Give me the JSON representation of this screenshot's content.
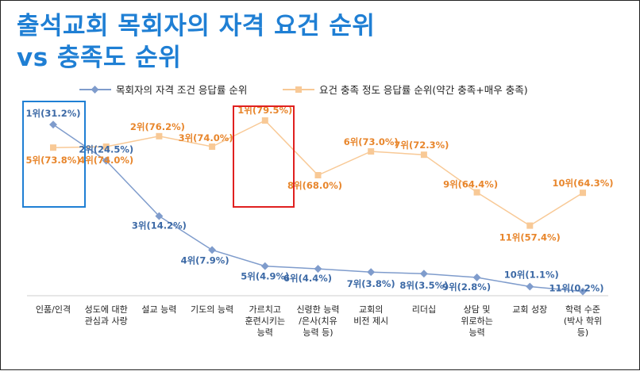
{
  "title_line1": "출석교회 목회자의 자격 요건 순위",
  "title_line2": "vs 충족도 순위",
  "chart_data": {
    "type": "line",
    "categories": [
      [
        "인품/인격"
      ],
      [
        "성도에 대한",
        "관심과 사랑"
      ],
      [
        "설교 능력"
      ],
      [
        "기도의 능력"
      ],
      [
        "가르치고",
        "훈련시키는",
        "능력"
      ],
      [
        "신령한 능력",
        "/은사(치유",
        "능력 등)"
      ],
      [
        "교회의",
        "비전 제시"
      ],
      [
        "리더십"
      ],
      [
        "상담 및",
        "위로하는",
        "능력"
      ],
      [
        "교회 성장"
      ],
      [
        "학력 수준",
        "(박사 학위",
        "등)"
      ]
    ],
    "series": [
      {
        "name": "목회자의 자격 조건 응답률 순위",
        "color": "#7f9ccc",
        "label_color": "#3d6aa6",
        "values": [
          31.2,
          24.5,
          14.2,
          7.9,
          4.9,
          4.4,
          3.8,
          3.5,
          2.8,
          1.1,
          0.2
        ],
        "labels": [
          "1위(31.2%)",
          "2위(24.5%)",
          "3위(14.2%)",
          "4위(7.9%)",
          "5위(4.9%)",
          "6위(4.4%)",
          "7위(3.8%)",
          "8위(3.5%)",
          "9위(2.8%)",
          "10위(1.1%)",
          "11위(0.2%)"
        ]
      },
      {
        "name": "요건 충족 정도 응답률 순위(약간 충족+매우 충족)",
        "color": "#f8c996",
        "label_color": "#e8862c",
        "values": [
          73.8,
          74.0,
          76.2,
          74.0,
          79.5,
          68.0,
          73.0,
          72.3,
          64.4,
          57.4,
          64.3
        ],
        "labels": [
          "5위(73.8%)",
          "4위(74.0%)",
          "2위(76.2%)",
          "3위(74.0%)",
          "1위(79.5%)",
          "8위(68.0%)",
          "6위(73.0%)",
          "7위(72.3%)",
          "9위(64.4%)",
          "11위(57.4%)",
          "10위(64.3%)"
        ]
      }
    ],
    "highlight_boxes": [
      {
        "category_index": 0,
        "color": "#1f7fd4"
      },
      {
        "category_index": 4,
        "color": "#e02020"
      }
    ]
  }
}
